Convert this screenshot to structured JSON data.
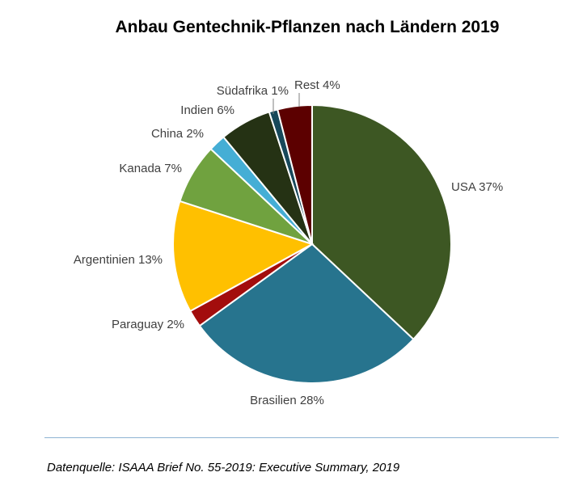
{
  "chart_data": {
    "type": "pie",
    "title": "Anbau Gentechnik-Pflanzen nach Ländern 2019",
    "start": "12 o'clock, clockwise",
    "slices": [
      {
        "label": "USA",
        "value": 37,
        "text": "USA 37%",
        "color": "#3d5723"
      },
      {
        "label": "Brasilien",
        "value": 28,
        "text": "Brasilien 28%",
        "color": "#27748e"
      },
      {
        "label": "Paraguay",
        "value": 2,
        "text": "Paraguay 2%",
        "color": "#a30d0d"
      },
      {
        "label": "Argentinien",
        "value": 13,
        "text": "Argentinien 13%",
        "color": "#ffc000"
      },
      {
        "label": "Kanada",
        "value": 7,
        "text": "Kanada 7%",
        "color": "#70a23f"
      },
      {
        "label": "China",
        "value": 2,
        "text": "China 2%",
        "color": "#45aed5"
      },
      {
        "label": "Indien",
        "value": 6,
        "text": "Indien 6%",
        "color": "#253214"
      },
      {
        "label": "Südafrika",
        "value": 1,
        "text": "Südafrika 1%",
        "color": "#17485a"
      },
      {
        "label": "Rest",
        "value": 4,
        "text": "Rest 4%",
        "color": "#5c0000"
      }
    ]
  },
  "footer": {
    "source": "Datenquelle: ISAAA Brief No. 55-2019: Executive Summary, 2019"
  }
}
